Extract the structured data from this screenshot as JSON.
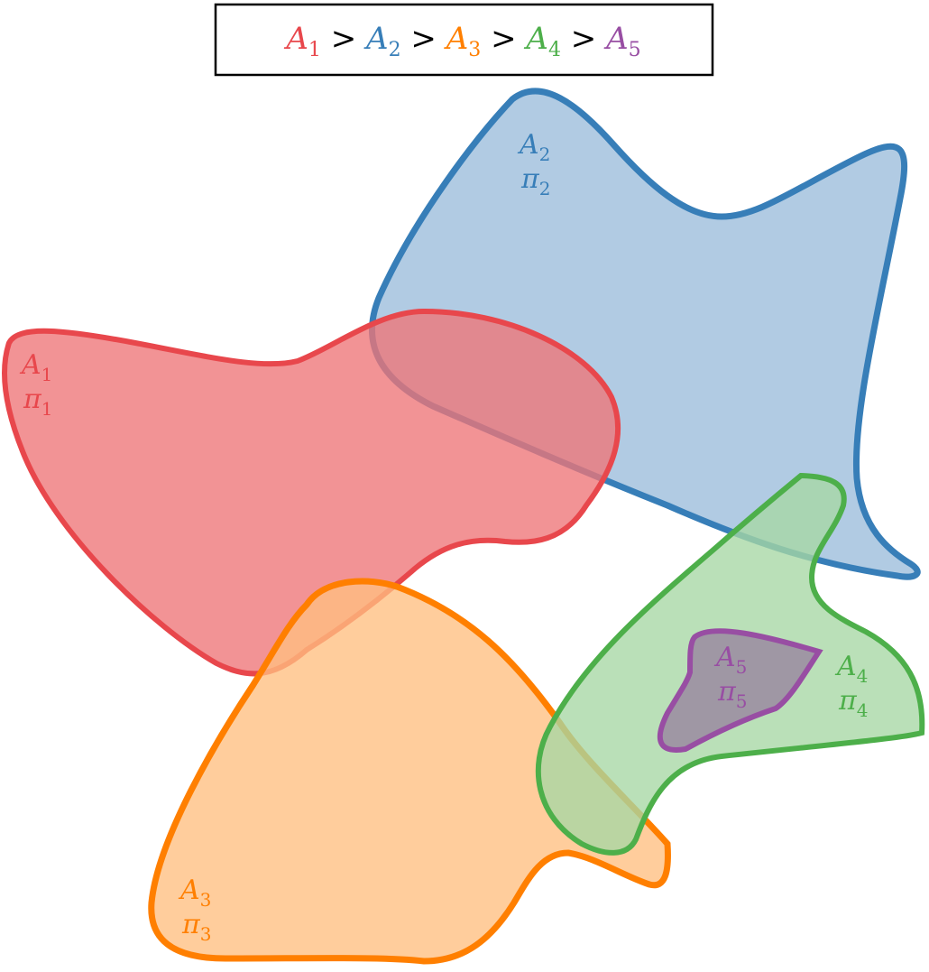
{
  "legend": {
    "separator": ">",
    "items": [
      {
        "base": "A",
        "sub": "1",
        "color": "#e8474c"
      },
      {
        "base": "A",
        "sub": "2",
        "color": "#377eb8"
      },
      {
        "base": "A",
        "sub": "3",
        "color": "#ff7f00"
      },
      {
        "base": "A",
        "sub": "4",
        "color": "#4daf4a"
      },
      {
        "base": "A",
        "sub": "5",
        "color": "#984ea3"
      }
    ]
  },
  "regions": [
    {
      "id": "A1",
      "label": "A",
      "sub": "1",
      "pi": "π",
      "pi_sub": "1",
      "stroke": "#e8474c",
      "fill": "#ee7477"
    },
    {
      "id": "A2",
      "label": "A",
      "sub": "2",
      "pi": "π",
      "pi_sub": "2",
      "stroke": "#377eb8",
      "fill": "#9bbddb"
    },
    {
      "id": "A3",
      "label": "A",
      "sub": "3",
      "pi": "π",
      "pi_sub": "3",
      "stroke": "#ff7f00",
      "fill": "#ffbf80"
    },
    {
      "id": "A4",
      "label": "A",
      "sub": "4",
      "pi": "π",
      "pi_sub": "4",
      "stroke": "#4daf4a",
      "fill": "#a6d7a4"
    },
    {
      "id": "A5",
      "label": "A",
      "sub": "5",
      "pi": "π",
      "pi_sub": "5",
      "stroke": "#984ea3",
      "fill": "#9a8aa0"
    }
  ]
}
